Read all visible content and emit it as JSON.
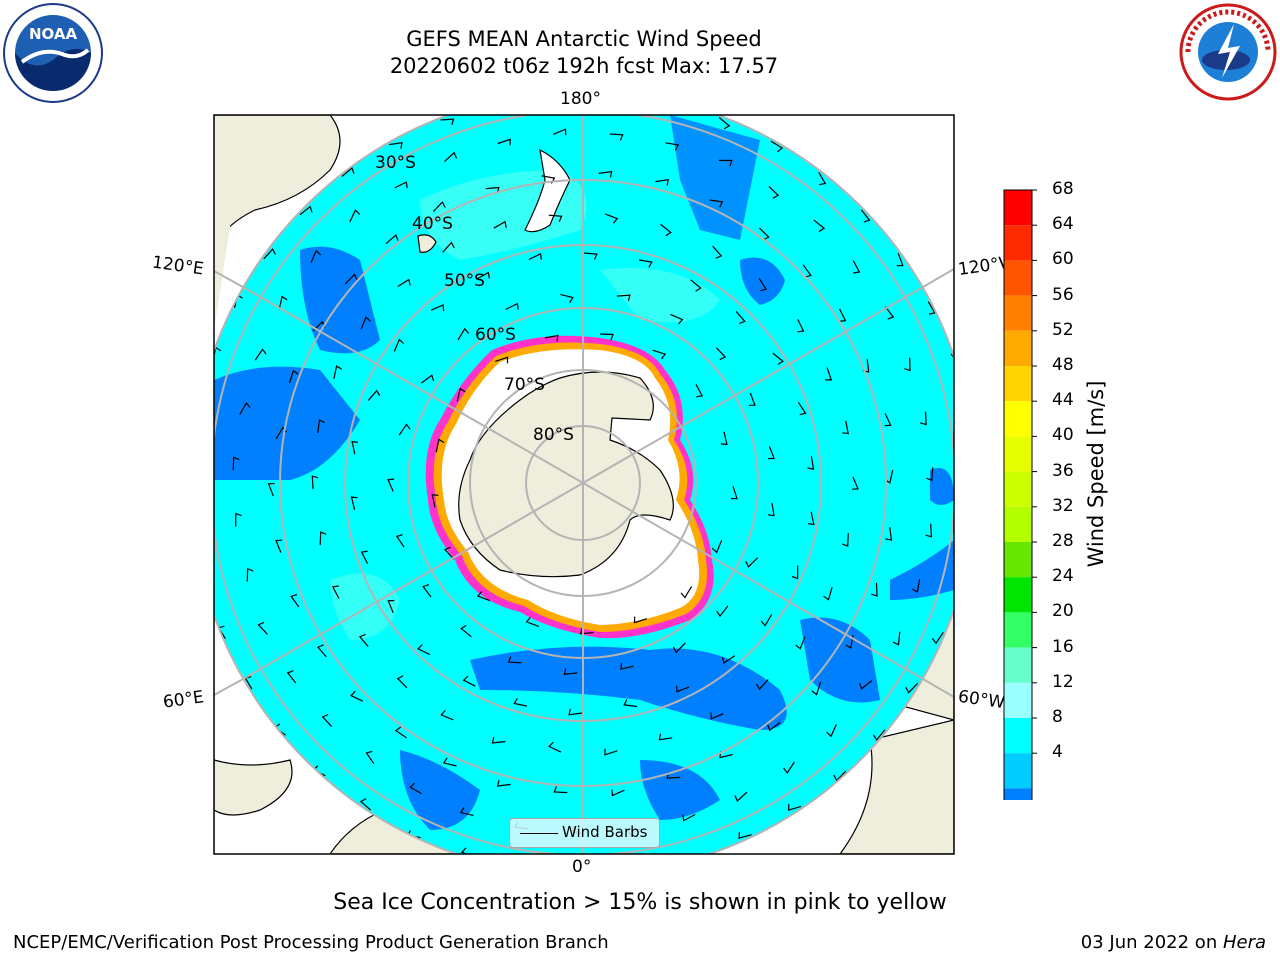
{
  "title_line1": "GEFS MEAN Antarctic Wind Speed",
  "title_line2": "20220602 t06z 192h fcst   Max: 17.57",
  "subtitle": "Sea Ice Concentration > 15% is shown in pink to yellow",
  "footer_left": "NCEP/EMC/Verification Post Processing Product Generation Branch",
  "footer_right_date": "03 Jun 2022 on ",
  "footer_right_host": "Hera",
  "legend_label": "Wind Barbs",
  "colorbar": {
    "label": "Wind Speed [m/s]",
    "ticks": [
      "68",
      "64",
      "60",
      "56",
      "52",
      "48",
      "44",
      "40",
      "36",
      "32",
      "28",
      "24",
      "20",
      "16",
      "12",
      "8",
      "4"
    ],
    "colors": [
      "#ff0000",
      "#ff2a00",
      "#ff5500",
      "#ff8000",
      "#ffaa00",
      "#ffd400",
      "#ffff00",
      "#e6ff00",
      "#ccff00",
      "#b3ff00",
      "#66e600",
      "#00e600",
      "#33ff66",
      "#66ffcc",
      "#99ffff",
      "#00ffff",
      "#00ccff",
      "#0080ff"
    ],
    "extend_color": "#0000ff"
  },
  "map_labels": {
    "top": "180°",
    "bottom": "0°",
    "left_upper": "120°E",
    "left_lower": "60°E",
    "right_upper": "120°W",
    "right_lower": "60°W",
    "lat30": "30°S",
    "lat40": "40°S",
    "lat50": "50°S",
    "lat60": "60°S",
    "lat70": "70°S",
    "lat80": "80°S"
  },
  "logos": {
    "noaa_text": "NOAA",
    "nws_text": "NATIONAL WEATHER SERVICE"
  }
}
